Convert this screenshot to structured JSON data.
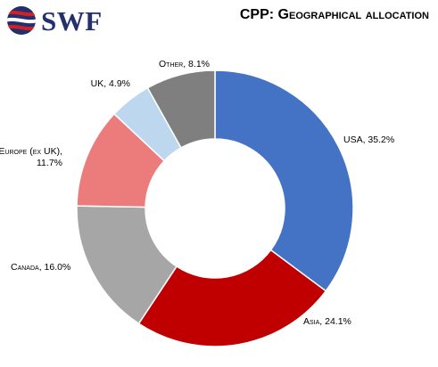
{
  "logo": {
    "text": "SWF",
    "colors": {
      "navy": "#24306b",
      "red": "#d32027"
    }
  },
  "chart_data": {
    "type": "pie",
    "variant": "donut",
    "title": "CPP: Geographical allocation",
    "unit": "%",
    "series": [
      {
        "label": "USA, 35.2%",
        "category": "USA",
        "value": 35.2,
        "color": "#4472c4"
      },
      {
        "label": "Asia, 24.1%",
        "category": "Asia",
        "value": 24.1,
        "color": "#c00000"
      },
      {
        "label": "Canada, 16.0%",
        "category": "Canada",
        "value": 16.0,
        "color": "#a6a6a6"
      },
      {
        "label": "Europe (ex UK), 11.7%",
        "category": "Europe (ex UK)",
        "value": 11.7,
        "color": "#ec7c7b"
      },
      {
        "label": "UK, 4.9%",
        "category": "UK",
        "value": 4.9,
        "color": "#bdd7ee"
      },
      {
        "label": "Other, 8.1%",
        "category": "Other",
        "value": 8.1,
        "color": "#7f7f7f"
      }
    ],
    "start_angle": "12 o'clock",
    "direction": "clockwise",
    "legend": "none (data labels)"
  }
}
